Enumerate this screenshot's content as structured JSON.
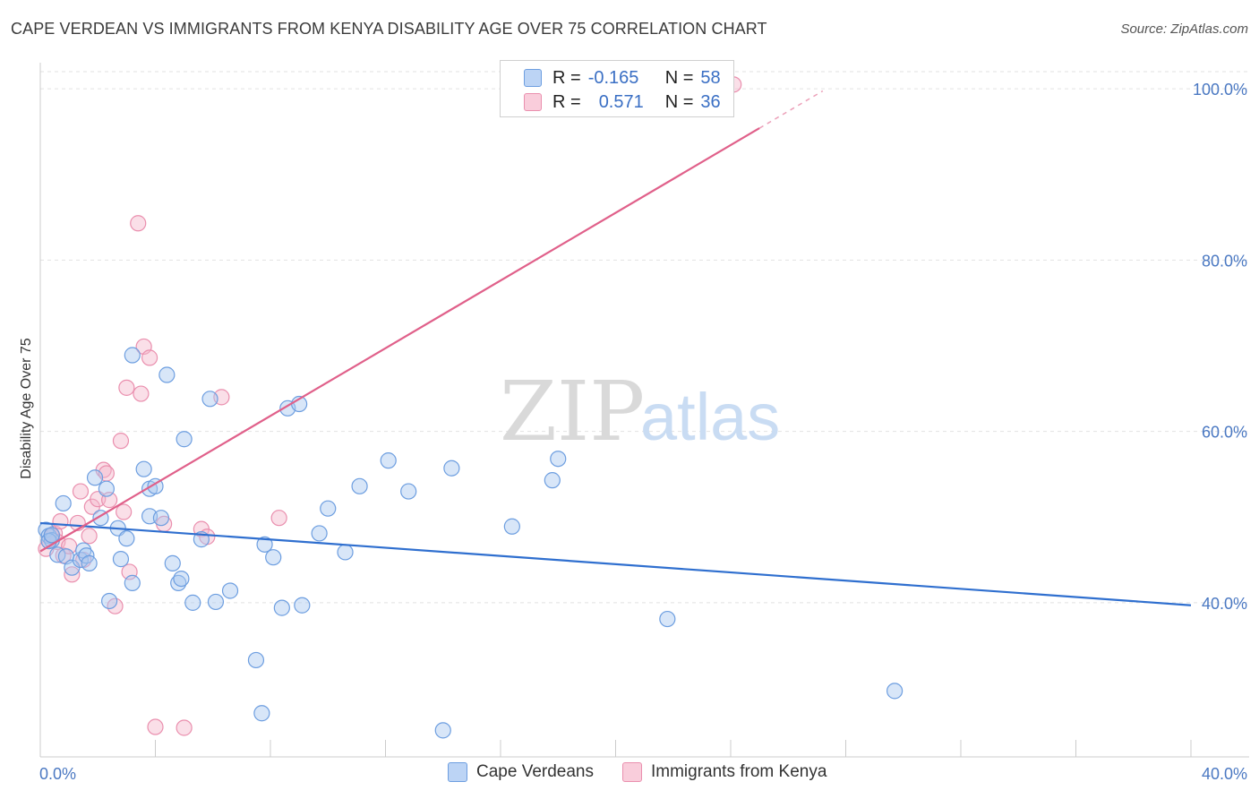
{
  "header": {
    "title": "CAPE VERDEAN VS IMMIGRANTS FROM KENYA DISABILITY AGE OVER 75 CORRELATION CHART",
    "source": "Source: ZipAtlas.com"
  },
  "watermark": {
    "zip": "ZIP",
    "atlas": "atlas"
  },
  "legend": {
    "rows": [
      {
        "r_label": "R =",
        "r_value": "-0.165",
        "n_label": "N =",
        "n_value": "58"
      },
      {
        "r_label": "R =",
        "r_value": "0.571",
        "n_label": "N =",
        "n_value": "36"
      }
    ]
  },
  "bottom_legend": {
    "series_a": "Cape Verdeans",
    "series_b": "Immigrants from Kenya"
  },
  "colors": {
    "blue_fill": "#a8c8f0",
    "blue_stroke": "#6d9ee0",
    "blue_line": "#2f6fcf",
    "pink_fill": "#f5b8cc",
    "pink_stroke": "#ea8fae",
    "pink_line": "#e0608a",
    "grid": "#e2e2e2",
    "tick_text": "#4a78c2"
  },
  "chart_data": {
    "type": "scatter",
    "title": "CAPE VERDEAN VS IMMIGRANTS FROM KENYA DISABILITY AGE OVER 75 CORRELATION CHART",
    "xlabel": "",
    "ylabel": "Disability Age Over 75",
    "xlim": [
      0,
      40
    ],
    "ylim": [
      22,
      102
    ],
    "x_tick_labels": [
      "0.0%",
      "40.0%"
    ],
    "y_ticks": [
      40,
      60,
      80,
      100
    ],
    "y_tick_labels": [
      "40.0%",
      "60.0%",
      "80.0%",
      "100.0%"
    ],
    "grid": true,
    "legend_position": "top-center",
    "series": [
      {
        "name": "Cape Verdeans",
        "color": "#a8c8f0",
        "trend": {
          "x": [
            0,
            40
          ],
          "y": [
            49.3,
            39.7
          ]
        },
        "points": [
          [
            0.2,
            48.5
          ],
          [
            0.3,
            47.8
          ],
          [
            0.4,
            47.3
          ],
          [
            0.6,
            45.6
          ],
          [
            0.8,
            51.6
          ],
          [
            0.9,
            45.4
          ],
          [
            1.1,
            44.1
          ],
          [
            1.4,
            45
          ],
          [
            1.5,
            46.1
          ],
          [
            1.6,
            45.5
          ],
          [
            1.7,
            44.6
          ],
          [
            1.9,
            54.6
          ],
          [
            2.1,
            49.9
          ],
          [
            2.3,
            53.3
          ],
          [
            2.4,
            40.2
          ],
          [
            2.7,
            48.7
          ],
          [
            2.8,
            45.1
          ],
          [
            3.0,
            47.5
          ],
          [
            3.2,
            42.3
          ],
          [
            3.2,
            68.9
          ],
          [
            3.6,
            55.6
          ],
          [
            3.8,
            53.3
          ],
          [
            3.8,
            50.1
          ],
          [
            4.0,
            53.6
          ],
          [
            4.2,
            49.9
          ],
          [
            4.4,
            66.6
          ],
          [
            4.6,
            44.6
          ],
          [
            4.8,
            42.3
          ],
          [
            4.9,
            42.8
          ],
          [
            5.0,
            59.1
          ],
          [
            5.3,
            40
          ],
          [
            5.6,
            47.4
          ],
          [
            5.9,
            63.8
          ],
          [
            6.1,
            40.1
          ],
          [
            6.6,
            41.4
          ],
          [
            7.5,
            33.3
          ],
          [
            7.7,
            27.1
          ],
          [
            7.8,
            46.8
          ],
          [
            8.1,
            45.3
          ],
          [
            8.4,
            39.4
          ],
          [
            8.6,
            62.7
          ],
          [
            9.0,
            63.2
          ],
          [
            9.1,
            39.7
          ],
          [
            9.7,
            48.1
          ],
          [
            10.0,
            51
          ],
          [
            10.6,
            45.9
          ],
          [
            11.1,
            53.6
          ],
          [
            12.1,
            56.6
          ],
          [
            12.8,
            53
          ],
          [
            14.0,
            25.1
          ],
          [
            14.3,
            55.7
          ],
          [
            16.4,
            48.9
          ],
          [
            17.8,
            54.3
          ],
          [
            18.0,
            56.8
          ],
          [
            21.8,
            38.1
          ],
          [
            29.7,
            29.7
          ],
          [
            0.3,
            47.2
          ],
          [
            0.4,
            47.9
          ]
        ]
      },
      {
        "name": "Immigrants from Kenya",
        "color": "#f5b8cc",
        "trend": {
          "x": [
            0,
            25
          ],
          "y": [
            46.0,
            95.4
          ]
        },
        "points": [
          [
            0.2,
            46.3
          ],
          [
            0.3,
            47.2
          ],
          [
            0.4,
            47.8
          ],
          [
            0.5,
            48.1
          ],
          [
            0.6,
            47.1
          ],
          [
            0.7,
            49.5
          ],
          [
            0.8,
            45.5
          ],
          [
            1.0,
            46.6
          ],
          [
            1.1,
            43.3
          ],
          [
            1.3,
            49.3
          ],
          [
            1.4,
            53
          ],
          [
            1.5,
            45
          ],
          [
            1.7,
            47.8
          ],
          [
            1.8,
            51.2
          ],
          [
            2.0,
            52.1
          ],
          [
            2.2,
            55.5
          ],
          [
            2.3,
            55.1
          ],
          [
            2.4,
            52
          ],
          [
            2.6,
            39.6
          ],
          [
            2.8,
            58.9
          ],
          [
            2.9,
            50.6
          ],
          [
            3.0,
            65.1
          ],
          [
            3.1,
            43.6
          ],
          [
            3.4,
            84.3
          ],
          [
            3.5,
            64.4
          ],
          [
            3.6,
            69.9
          ],
          [
            3.8,
            68.6
          ],
          [
            4.0,
            25.5
          ],
          [
            4.3,
            49.2
          ],
          [
            5.0,
            25.4
          ],
          [
            5.6,
            48.6
          ],
          [
            5.8,
            47.7
          ],
          [
            6.3,
            64
          ],
          [
            8.3,
            49.9
          ],
          [
            24.1,
            100.5
          ],
          [
            0.4,
            47.9
          ]
        ]
      }
    ]
  }
}
